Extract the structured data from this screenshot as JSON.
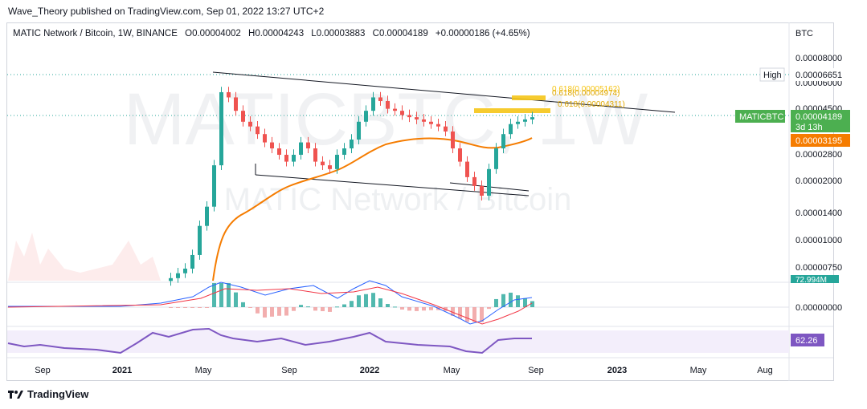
{
  "publisher": "Wave_Theory published on TradingView.com, Sep 01, 2022 13:27 UTC+2",
  "header": {
    "symbol": "MATIC Network / Bitcoin, 1W, BINANCE",
    "open": "O0.00004002",
    "high": "H0.00004243",
    "low": "L0.00003883",
    "close": "C0.00004189",
    "change": "+0.00000186 (+4.65%)"
  },
  "watermark": {
    "big": "MATICBTC, 1W",
    "sub": "MATIC Network / Bitcoin"
  },
  "price_axis": {
    "currency": "BTC",
    "ticks": [
      "0.00008000",
      "0.00006000",
      "0.00004500",
      "0.00002800",
      "0.00002000",
      "0.00001400",
      "0.00001000",
      "0.00000750"
    ],
    "high_label": "High",
    "high_value": "0.00006651",
    "symbol_tag": "MATICBTC",
    "last_price": "0.00004189",
    "countdown": "3d 13h",
    "ma_value": "0.00003195",
    "volume_value": "72.994M",
    "macd_zero": "0.00000000",
    "rsi_value": "62.26"
  },
  "fib_labels": [
    "0.618(0.00005162)",
    "0.618(0.00004974)",
    "0.618(0.00004311)"
  ],
  "time_axis": [
    "Sep",
    "2021",
    "May",
    "Sep",
    "2022",
    "May",
    "Sep",
    "2023",
    "May",
    "Aug"
  ],
  "footer": {
    "brand": "TradingView"
  },
  "colors": {
    "up": "#26a69a",
    "down": "#ef5350",
    "ma": "#f57c00",
    "rsi": "#7e57c2",
    "fib": "#f5c518",
    "macd_line": "#2962ff",
    "signal_line": "#f23645"
  },
  "chart_data": {
    "type": "candlestick",
    "timeframe": "1W",
    "price_scale": "log",
    "candles_approx_close": [
      7.4e-06,
      7.8e-06,
      8.2e-06,
      9.5e-06,
      1.3e-05,
      1.6e-05,
      2.5e-05,
      5.5e-05,
      5.2e-05,
      4.5e-05,
      4e-05,
      3.8e-05,
      3.5e-05,
      3.2e-05,
      3e-05,
      2.8e-05,
      2.6e-05,
      2.8e-05,
      3.2e-05,
      3e-05,
      2.6e-05,
      2.5e-05,
      2.4e-05,
      2.8e-05,
      3e-05,
      3.3e-05,
      4e-05,
      4.5e-05,
      5.2e-05,
      5e-05,
      4.6e-05,
      4.5e-05,
      4.3e-05,
      4.2e-05,
      4.1e-05,
      4e-05,
      3.9e-05,
      3.8e-05,
      3.6e-05,
      3e-05,
      2.6e-05,
      2.2e-05,
      2e-05,
      1.8e-05,
      2.4e-05,
      3e-05,
      3.5e-05,
      3.9e-05,
      4e-05,
      4.1e-05,
      4.2e-05
    ],
    "ma_last": 3.195e-05,
    "high": 6.651e-05,
    "last": 4.189e-05,
    "rsi_last": 62.26
  }
}
